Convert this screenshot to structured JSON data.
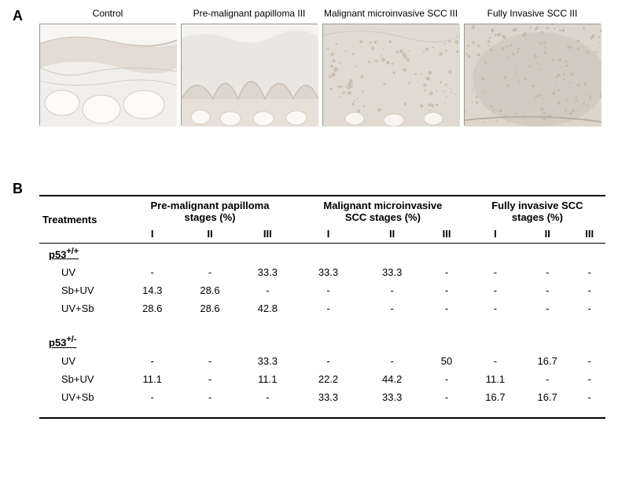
{
  "panelA": {
    "label": "A",
    "images": [
      {
        "title": "Control",
        "bg": "#f1efec",
        "pattern": "control"
      },
      {
        "title": "Pre-malignant papilloma III",
        "bg": "#eae6e2",
        "pattern": "papilloma"
      },
      {
        "title": "Malignant microinvasive SCC III",
        "bg": "#e7e3df",
        "pattern": "micro"
      },
      {
        "title": "Fully Invasive SCC III",
        "bg": "#e4e0dc",
        "pattern": "invasive"
      }
    ]
  },
  "panelB": {
    "label": "B",
    "table": {
      "treatments_header": "Treatments",
      "column_groups": [
        {
          "title": "Pre-malignant papilloma\nstages (%)",
          "stages": [
            "I",
            "II",
            "III"
          ]
        },
        {
          "title": "Malignant microinvasive\nSCC stages  (%)",
          "stages": [
            "I",
            "II",
            "III"
          ]
        },
        {
          "title": "Fully invasive SCC\nstages (%)",
          "stages": [
            "I",
            "II",
            "III"
          ]
        }
      ],
      "groups": [
        {
          "name": "p53",
          "genotype": "+/+",
          "rows": [
            {
              "treatment": "UV",
              "values": [
                "-",
                "-",
                "33.3",
                "33.3",
                "33.3",
                "-",
                "-",
                "-",
                "-"
              ]
            },
            {
              "treatment": "Sb+UV",
              "values": [
                "14.3",
                "28.6",
                "-",
                "-",
                "-",
                "-",
                "-",
                "-",
                "-"
              ]
            },
            {
              "treatment": "UV+Sb",
              "values": [
                "28.6",
                "28.6",
                "42.8",
                "-",
                "-",
                "-",
                "-",
                "-",
                "-"
              ]
            }
          ]
        },
        {
          "name": "p53",
          "genotype": "+/-",
          "rows": [
            {
              "treatment": "UV",
              "values": [
                "-",
                "-",
                "33.3",
                "-",
                "-",
                "50",
                "-",
                "16.7",
                "-"
              ]
            },
            {
              "treatment": "Sb+UV",
              "values": [
                "11.1",
                "-",
                "11.1",
                "22.2",
                "44.2",
                "-",
                "11.1",
                "-",
                "-"
              ]
            },
            {
              "treatment": "UV+Sb",
              "values": [
                "-",
                "-",
                "-",
                "33.3",
                "33.3",
                "-",
                "16.7",
                "16.7",
                "-"
              ]
            }
          ]
        }
      ]
    }
  },
  "style": {
    "font_family": "Arial",
    "text_color": "#000000",
    "background_color": "#ffffff",
    "panel_label_fontsize": 18,
    "image_title_fontsize": 12,
    "table_fontsize": 13,
    "rule_color": "#000000"
  }
}
